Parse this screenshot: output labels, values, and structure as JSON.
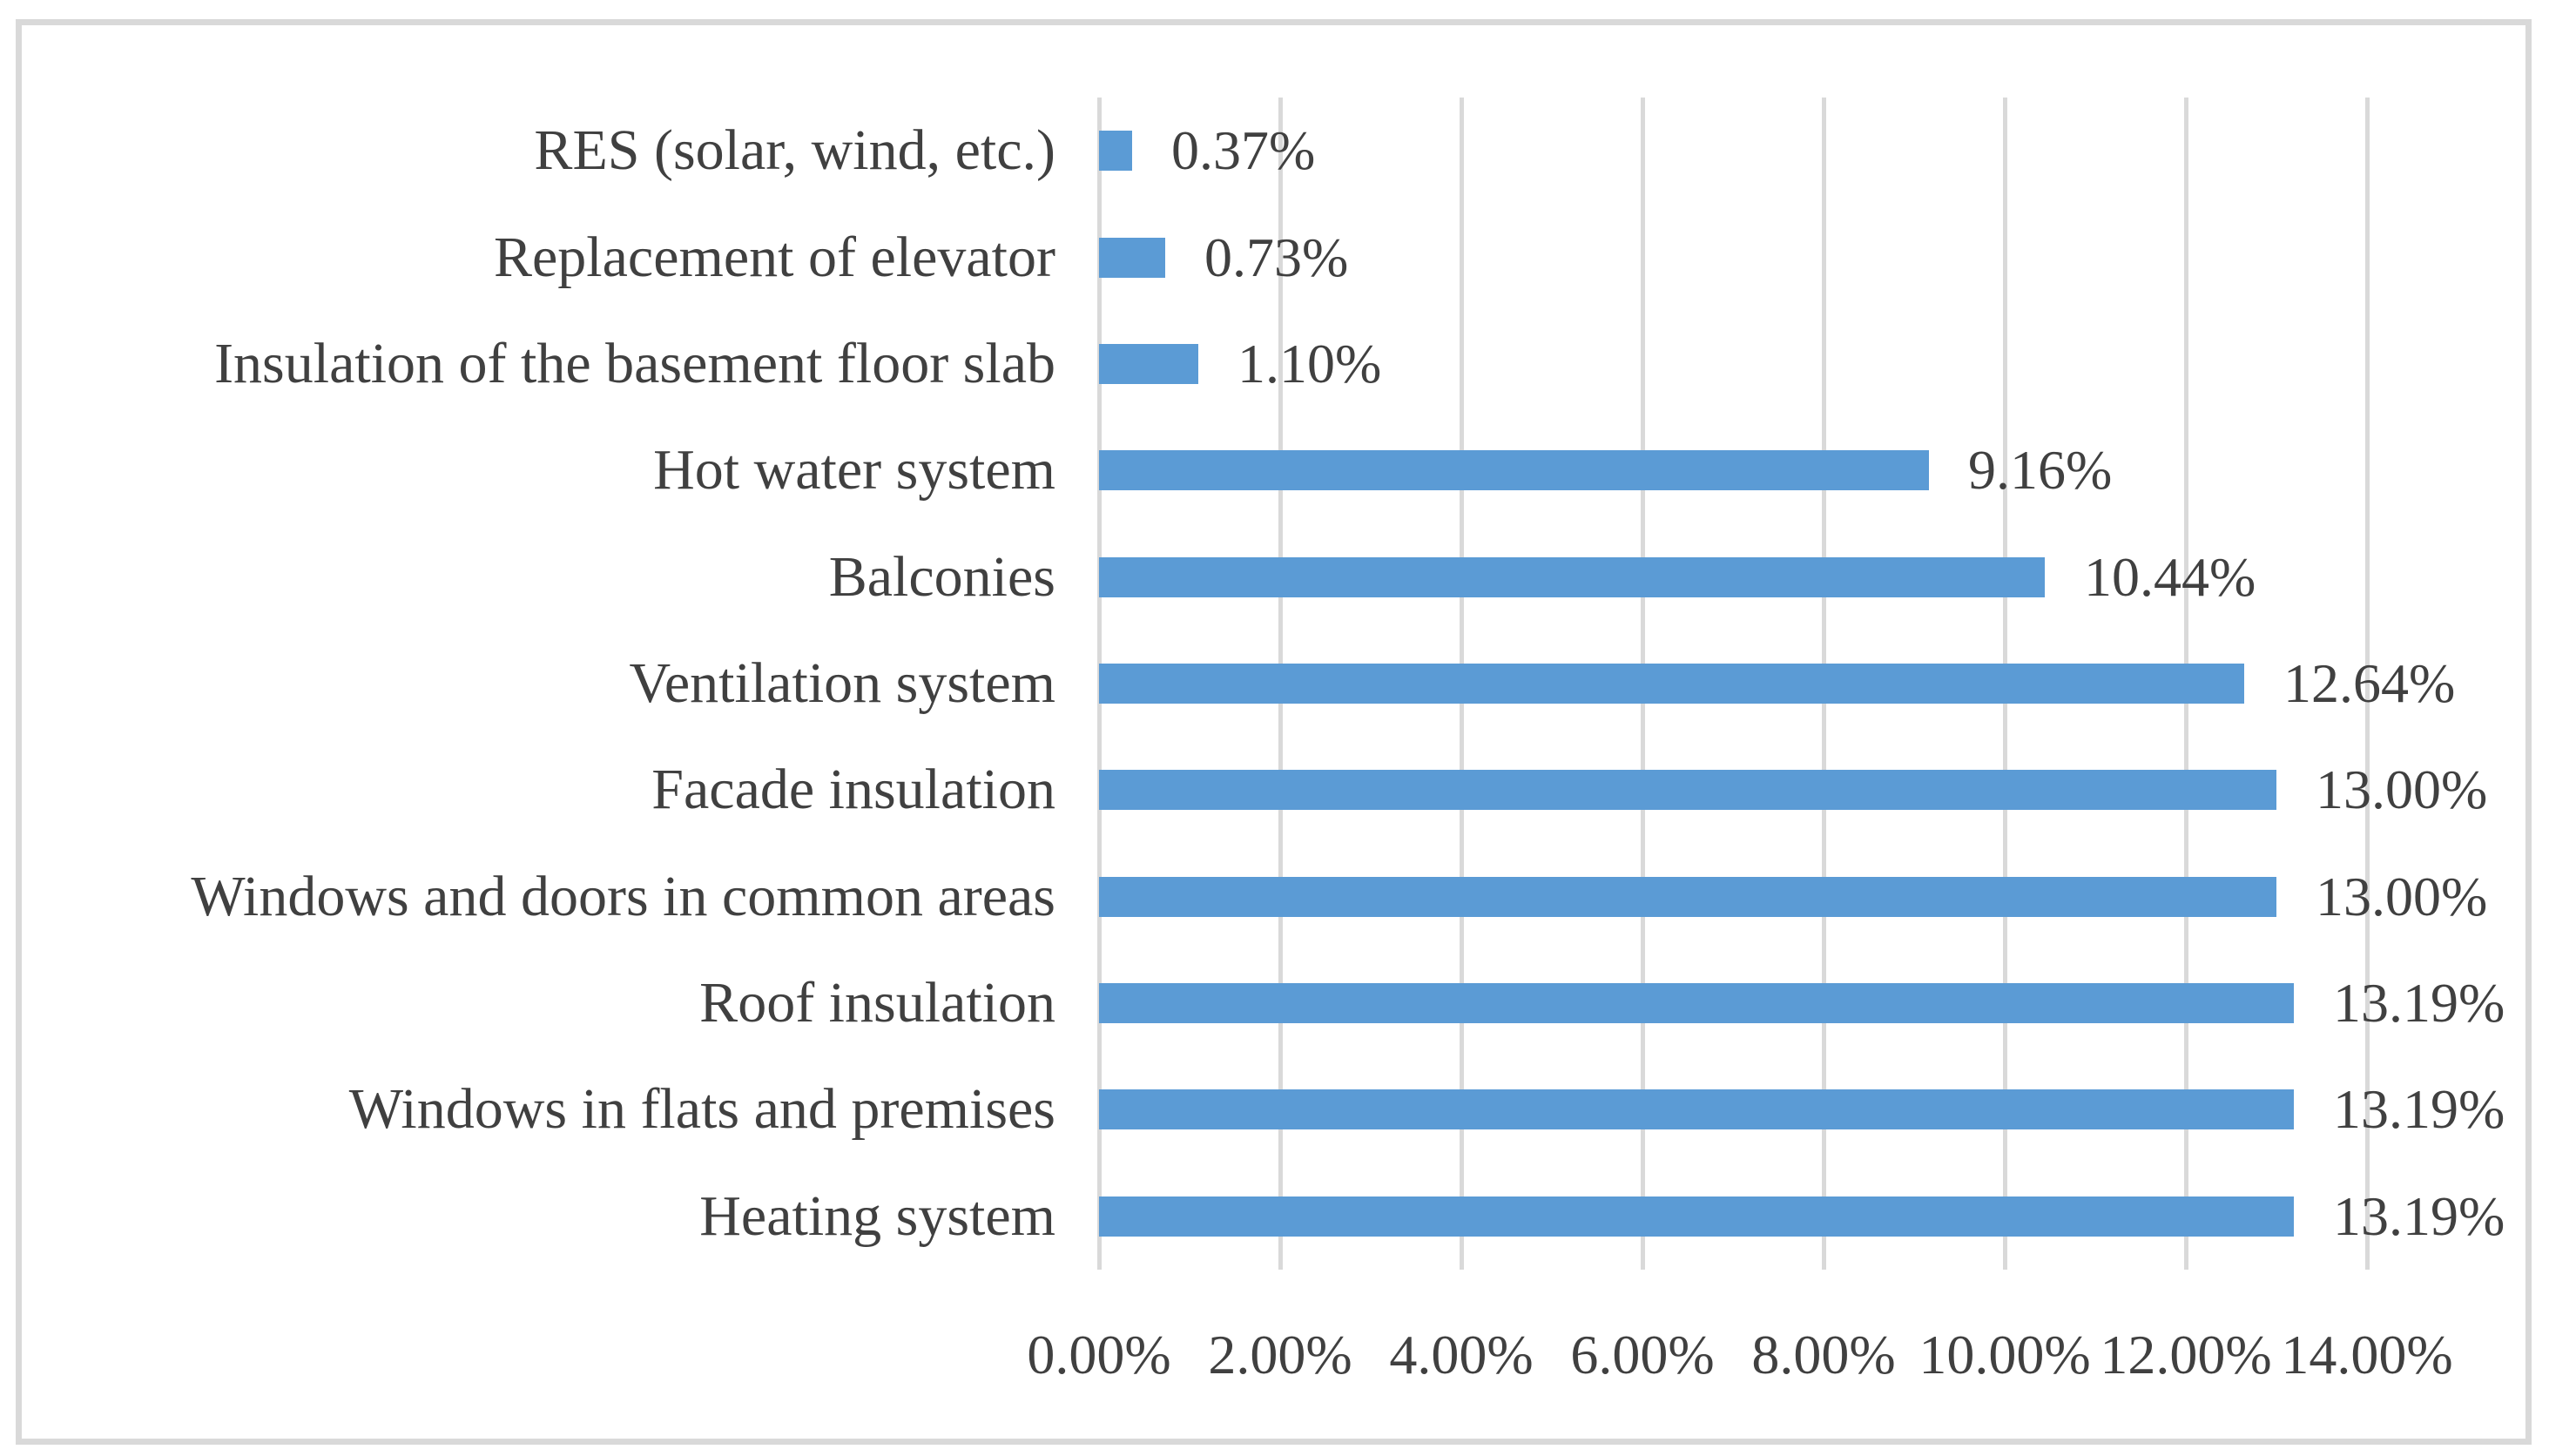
{
  "figure": {
    "kind": "horizontal-bar-chart-figure",
    "background_color": "#FFFFFF",
    "frame_border_color": "#D9D9D9"
  },
  "chart_data": {
    "type": "bar",
    "orientation": "horizontal",
    "title": "",
    "xlabel": "",
    "ylabel": "",
    "categories": [
      "RES (solar, wind, etc.)",
      "Replacement of elevator",
      "Insulation of the basement floor slab",
      "Hot water system",
      "Balconies",
      "Ventilation system",
      "Facade insulation",
      "Windows and doors in common areas",
      "Roof insulation",
      "Windows in flats and premises",
      "Heating system"
    ],
    "values": [
      0.37,
      0.73,
      1.1,
      9.16,
      10.44,
      12.64,
      13.0,
      13.0,
      13.19,
      13.19,
      13.19
    ],
    "value_labels": [
      "0.37%",
      "0.73%",
      "1.10%",
      "9.16%",
      "10.44%",
      "12.64%",
      "13.00%",
      "13.00%",
      "13.19%",
      "13.19%",
      "13.19%"
    ],
    "xlim": [
      0,
      14
    ],
    "x_tick_step_percent": 2,
    "x_tick_labels": [
      "0.00%",
      "2.00%",
      "4.00%",
      "6.00%",
      "8.00%",
      "10.00%",
      "12.00%",
      "14.00%"
    ],
    "grid": true,
    "legend": false,
    "colors": {
      "bar": "#5B9BD5",
      "gridline": "#D9D9D9",
      "text": "#404040",
      "frame_border": "#D9D9D9"
    }
  }
}
